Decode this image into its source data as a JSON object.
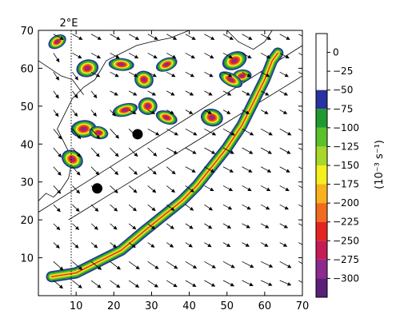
{
  "chart_data": {
    "type": "heatmap",
    "title": "",
    "xlabel": "",
    "ylabel": "",
    "xlim": [
      0,
      70
    ],
    "ylim": [
      0,
      70
    ],
    "x_ticks": [
      10,
      20,
      30,
      40,
      50,
      60,
      70
    ],
    "y_ticks": [
      10,
      20,
      30,
      40,
      50,
      60,
      70
    ],
    "meridian_label": "2°E",
    "meridian_x": 8.7,
    "colorbar": {
      "unit_label": "(10⁻³ s⁻¹)",
      "ticks": [
        "0",
        "−25",
        "−50",
        "−75",
        "−100",
        "−125",
        "−150",
        "−175",
        "−200",
        "−225",
        "−250",
        "−275",
        "−300"
      ],
      "colors": [
        "#ffffff",
        "#ffffff",
        "#ffffff",
        "#2832a0",
        "#1f9a2e",
        "#5cc02a",
        "#a9d62b",
        "#f4ef1e",
        "#f9b21d",
        "#f26a1d",
        "#e52421",
        "#c41c55",
        "#8c2a8f",
        "#5b1f7a"
      ]
    },
    "markers": [
      {
        "x": 15.6,
        "y": 28.3
      },
      {
        "x": 26.3,
        "y": 42.6
      }
    ],
    "regions": [
      {
        "name": "main band",
        "min_value": -225,
        "path": [
          [
            3.5,
            5.5
          ],
          [
            10,
            7
          ],
          [
            15,
            10
          ],
          [
            22,
            15
          ],
          [
            28,
            19
          ],
          [
            33,
            23
          ],
          [
            37,
            27
          ],
          [
            42,
            32
          ],
          [
            47,
            37
          ],
          [
            51,
            42
          ],
          [
            55,
            48
          ],
          [
            58,
            54
          ],
          [
            61,
            60
          ],
          [
            63,
            65
          ],
          [
            64.5,
            63
          ],
          [
            63,
            57
          ],
          [
            60,
            50
          ],
          [
            57,
            44
          ],
          [
            53,
            38
          ],
          [
            48,
            32
          ],
          [
            43,
            27
          ],
          [
            38,
            22
          ],
          [
            33,
            18
          ],
          [
            27,
            13
          ],
          [
            20,
            8
          ],
          [
            12,
            5
          ],
          [
            5,
            4
          ]
        ]
      },
      {
        "name": "upper-left cells",
        "min_value": -300,
        "cells": [
          [
            5,
            67
          ],
          [
            13,
            60
          ],
          [
            22,
            61
          ],
          [
            28,
            57
          ],
          [
            34,
            61
          ],
          [
            12,
            44
          ],
          [
            16,
            43
          ],
          [
            9,
            36
          ],
          [
            23,
            49
          ],
          [
            29,
            50
          ],
          [
            34,
            47
          ],
          [
            52,
            62
          ],
          [
            54,
            58
          ],
          [
            46,
            47
          ],
          [
            51,
            57
          ]
        ]
      }
    ]
  }
}
